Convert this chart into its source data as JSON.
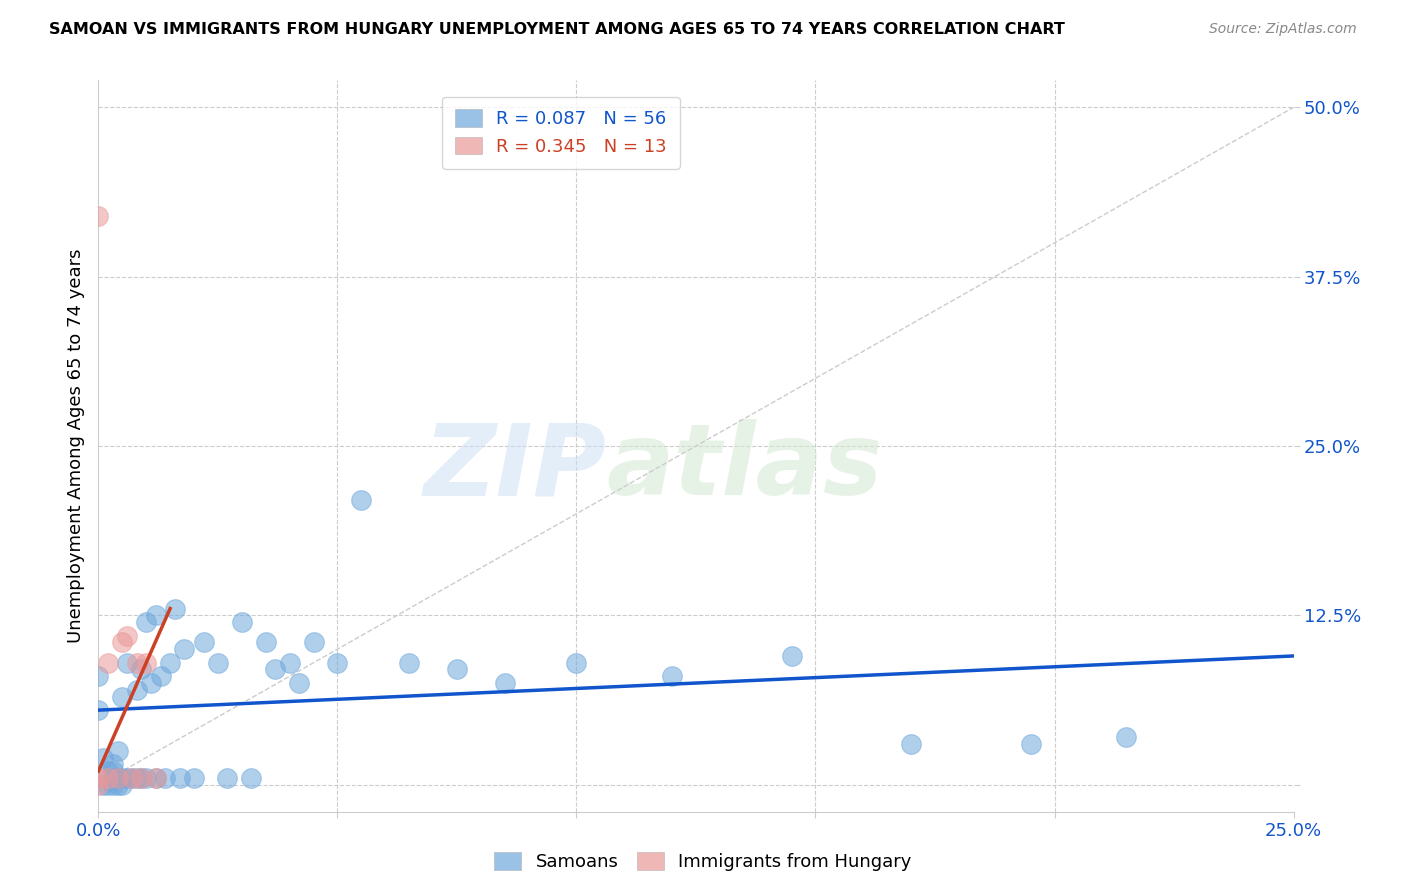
{
  "title": "SAMOAN VS IMMIGRANTS FROM HUNGARY UNEMPLOYMENT AMONG AGES 65 TO 74 YEARS CORRELATION CHART",
  "source": "Source: ZipAtlas.com",
  "ylabel": "Unemployment Among Ages 65 to 74 years",
  "xlim": [
    0.0,
    0.25
  ],
  "ylim": [
    -0.02,
    0.52
  ],
  "xticks": [
    0.0,
    0.05,
    0.1,
    0.15,
    0.2,
    0.25
  ],
  "xticklabels": [
    "0.0%",
    "",
    "",
    "",
    "",
    "25.0%"
  ],
  "ytick_positions": [
    0.0,
    0.125,
    0.25,
    0.375,
    0.5
  ],
  "yticklabels": [
    "",
    "12.5%",
    "25.0%",
    "37.5%",
    "50.0%"
  ],
  "blue_color": "#6fa8dc",
  "pink_color": "#ea9999",
  "trend_blue": "#1155cc",
  "trend_pink": "#cc4125",
  "watermark_zip": "ZIP",
  "watermark_atlas": "atlas",
  "samoans_x": [
    0.0,
    0.0,
    0.001,
    0.001,
    0.002,
    0.002,
    0.003,
    0.003,
    0.003,
    0.003,
    0.004,
    0.004,
    0.004,
    0.005,
    0.005,
    0.005,
    0.006,
    0.006,
    0.007,
    0.008,
    0.008,
    0.009,
    0.009,
    0.01,
    0.01,
    0.011,
    0.012,
    0.012,
    0.013,
    0.014,
    0.015,
    0.016,
    0.017,
    0.018,
    0.02,
    0.022,
    0.025,
    0.027,
    0.03,
    0.032,
    0.035,
    0.037,
    0.04,
    0.042,
    0.045,
    0.05,
    0.055,
    0.065,
    0.075,
    0.085,
    0.1,
    0.12,
    0.145,
    0.17,
    0.195,
    0.215
  ],
  "samoans_y": [
    0.055,
    0.08,
    0.0,
    0.02,
    0.0,
    0.01,
    0.0,
    0.005,
    0.01,
    0.015,
    0.0,
    0.005,
    0.025,
    0.0,
    0.005,
    0.065,
    0.005,
    0.09,
    0.005,
    0.005,
    0.07,
    0.005,
    0.085,
    0.005,
    0.12,
    0.075,
    0.005,
    0.125,
    0.08,
    0.005,
    0.09,
    0.13,
    0.005,
    0.1,
    0.005,
    0.105,
    0.09,
    0.005,
    0.12,
    0.005,
    0.105,
    0.085,
    0.09,
    0.075,
    0.105,
    0.09,
    0.21,
    0.09,
    0.085,
    0.075,
    0.09,
    0.08,
    0.095,
    0.03,
    0.03,
    0.035
  ],
  "hungary_x": [
    0.0,
    0.0,
    0.0,
    0.002,
    0.002,
    0.004,
    0.005,
    0.006,
    0.007,
    0.008,
    0.009,
    0.01,
    0.012
  ],
  "hungary_y": [
    0.0,
    0.005,
    0.42,
    0.005,
    0.09,
    0.005,
    0.105,
    0.11,
    0.005,
    0.09,
    0.005,
    0.09,
    0.005
  ],
  "blue_trend_x": [
    0.0,
    0.25
  ],
  "blue_trend_y": [
    0.055,
    0.095
  ],
  "pink_trend_x": [
    0.0,
    0.015
  ],
  "pink_trend_y": [
    0.01,
    0.13
  ]
}
